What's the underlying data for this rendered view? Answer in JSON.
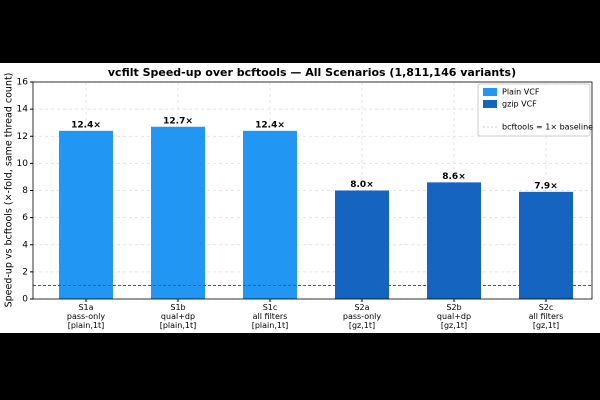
{
  "chart_data": {
    "type": "bar",
    "title": "vcfilt Speed-up over bcftools — All Scenarios (1,811,146 variants)",
    "y_label": "Speed-up vs bcftools (×-fold, same thread count)",
    "categories": [
      "S1a\npass-only\n[plain,1t]",
      "S1b\nqual+dp\n[plain,1t]",
      "S1c\nall filters\n[plain,1t]",
      "S2a\npass-only\n[gz,1t]",
      "S2b\nqual+dp\n[gz,1t]",
      "S2c\nall filters\n[gz,1t]"
    ],
    "series": [
      {
        "name": "Plain VCF",
        "color": "#2196f3",
        "values": [
          12.4,
          12.7,
          12.4,
          null,
          null,
          null
        ],
        "value_labels": [
          "12.4×",
          "12.7×",
          "12.4×",
          null,
          null,
          null
        ]
      },
      {
        "name": "gzip VCF",
        "color": "#1565c0",
        "values": [
          null,
          null,
          null,
          8.0,
          8.6,
          7.9
        ],
        "value_labels": [
          null,
          null,
          null,
          "8.0×",
          "8.6×",
          "7.9×"
        ]
      }
    ],
    "baseline": {
      "value": 1,
      "label": "bcftools = 1× baseline"
    },
    "ylim": [
      0,
      16
    ],
    "yticks": [
      0,
      2,
      4,
      6,
      8,
      10,
      12,
      14,
      16
    ],
    "grid": true,
    "legend": "upper right"
  }
}
